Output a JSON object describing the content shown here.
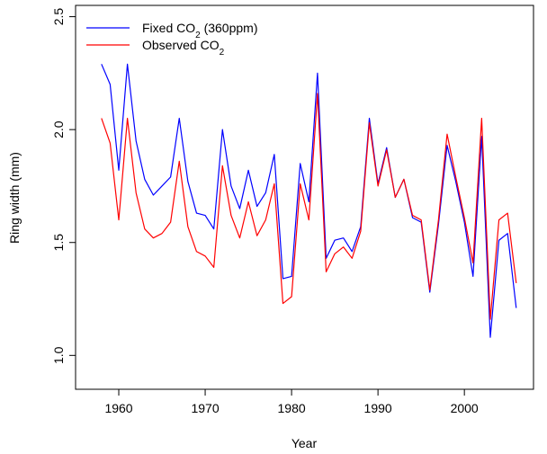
{
  "chart_data": {
    "type": "line",
    "title": "",
    "xlabel": "Year",
    "ylabel": "Ring width (mm)",
    "xlim": [
      1955,
      2008
    ],
    "ylim": [
      0.85,
      2.55
    ],
    "xticks": [
      1960,
      1970,
      1980,
      1990,
      2000
    ],
    "yticks": [
      1.0,
      1.5,
      2.0,
      2.5
    ],
    "x_tick_labels": [
      "1960",
      "1970",
      "1980",
      "1990",
      "2000"
    ],
    "y_tick_labels": [
      "1.0",
      "1.5",
      "2.0",
      "2.5"
    ],
    "legend_position": "top-left",
    "x": [
      1958,
      1959,
      1960,
      1961,
      1962,
      1963,
      1964,
      1965,
      1966,
      1967,
      1968,
      1969,
      1970,
      1971,
      1972,
      1973,
      1974,
      1975,
      1976,
      1977,
      1978,
      1979,
      1980,
      1981,
      1982,
      1983,
      1984,
      1985,
      1986,
      1987,
      1988,
      1989,
      1990,
      1991,
      1992,
      1993,
      1994,
      1995,
      1996,
      1997,
      1998,
      1999,
      2000,
      2001,
      2002,
      2003,
      2004,
      2005,
      2006
    ],
    "series": [
      {
        "name": "Fixed CO",
        "name_sub": "2",
        "name_suffix": " (360ppm)",
        "color": "#0000ff",
        "values": [
          2.29,
          2.2,
          1.82,
          2.29,
          1.95,
          1.78,
          1.71,
          1.75,
          1.79,
          2.05,
          1.77,
          1.63,
          1.62,
          1.56,
          2.0,
          1.75,
          1.65,
          1.82,
          1.66,
          1.72,
          1.89,
          1.34,
          1.35,
          1.85,
          1.68,
          2.25,
          1.43,
          1.51,
          1.52,
          1.46,
          1.57,
          2.05,
          1.76,
          1.92,
          1.7,
          1.78,
          1.61,
          1.59,
          1.28,
          1.58,
          1.93,
          1.77,
          1.59,
          1.35,
          1.97,
          1.08,
          1.51,
          1.54,
          1.21
        ]
      },
      {
        "name": "Observed CO",
        "name_sub": "2",
        "name_suffix": "",
        "color": "#ff0000",
        "values": [
          2.05,
          1.94,
          1.6,
          2.05,
          1.72,
          1.56,
          1.52,
          1.54,
          1.59,
          1.86,
          1.57,
          1.46,
          1.44,
          1.39,
          1.84,
          1.62,
          1.52,
          1.68,
          1.53,
          1.6,
          1.76,
          1.23,
          1.26,
          1.76,
          1.6,
          2.16,
          1.37,
          1.45,
          1.48,
          1.43,
          1.55,
          2.03,
          1.75,
          1.91,
          1.7,
          1.78,
          1.62,
          1.6,
          1.29,
          1.6,
          1.98,
          1.79,
          1.61,
          1.41,
          2.05,
          1.16,
          1.6,
          1.63,
          1.32
        ]
      }
    ]
  }
}
